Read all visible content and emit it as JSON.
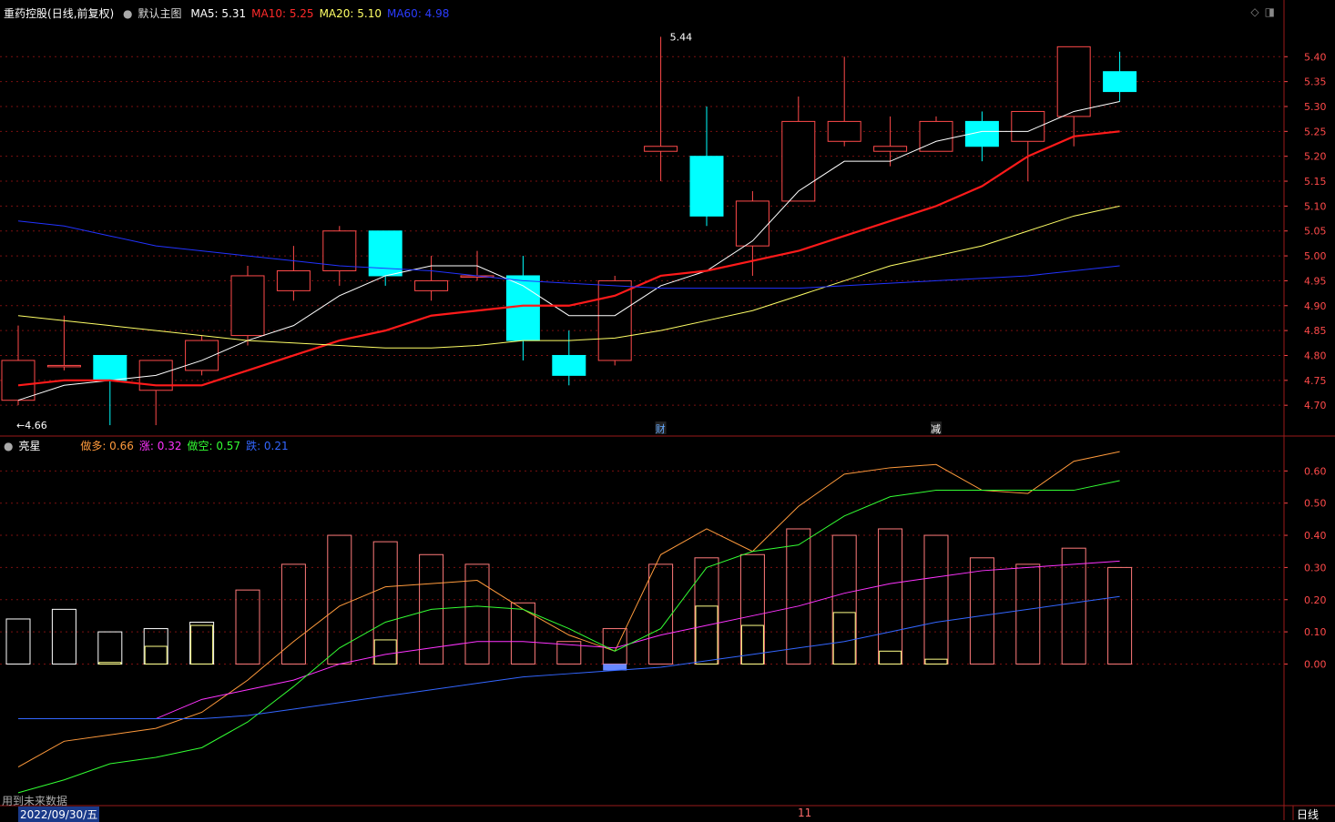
{
  "header": {
    "stock": "重药控股",
    "mode": "(日线,前复权)",
    "template": "默认主图",
    "ma_labels": [
      {
        "label": "MA5:",
        "value": "5.31",
        "color": "#ffffff"
      },
      {
        "label": "MA10:",
        "value": "5.25",
        "color": "#ff2a2a"
      },
      {
        "label": "MA20:",
        "value": "5.10",
        "color": "#ffff66"
      },
      {
        "label": "MA60:",
        "value": "4.98",
        "color": "#2b3cff"
      }
    ]
  },
  "sub_header": {
    "name": "亮星",
    "items": [
      {
        "label": "做多:",
        "value": "0.66",
        "color": "#ff9a3c"
      },
      {
        "label": "涨:",
        "value": "0.32",
        "color": "#ff33ff"
      },
      {
        "label": "做空:",
        "value": "0.57",
        "color": "#33ff33"
      },
      {
        "label": "跌:",
        "value": "0.21",
        "color": "#3366ff"
      }
    ]
  },
  "footer": {
    "note": "用到未来数据",
    "date": "2022/09/30/五",
    "month_marker": "11",
    "period": "日线"
  },
  "colors": {
    "up": "#ff4a4a",
    "down": "#00ffff",
    "ma5": "#ffffff",
    "ma10": "#ff1a1a",
    "ma20": "#ffff66",
    "ma60": "#2233ff",
    "axis": "#ff4a4a",
    "grid": "#7a1010"
  },
  "chart_data": [
    {
      "type": "candlestick",
      "ylim": [
        4.64,
        5.47
      ],
      "y_ticks": [
        4.7,
        4.75,
        4.8,
        4.85,
        4.9,
        4.95,
        5.0,
        5.05,
        5.1,
        5.15,
        5.2,
        5.25,
        5.3,
        5.35,
        5.4
      ],
      "annotations": [
        {
          "text": "5.44",
          "bar": 14,
          "value": 5.44
        },
        {
          "text": "←4.66",
          "bar": 0,
          "value": 4.66
        }
      ],
      "event_markers": [
        {
          "text": "财",
          "bar": 14
        },
        {
          "text": "减",
          "bar": 20
        }
      ],
      "candles": [
        {
          "o": 4.71,
          "h": 4.86,
          "l": 4.7,
          "c": 4.79
        },
        {
          "o": 4.78,
          "h": 4.88,
          "l": 4.77,
          "c": 4.78
        },
        {
          "o": 4.8,
          "h": 4.8,
          "l": 4.66,
          "c": 4.75
        },
        {
          "o": 4.73,
          "h": 4.79,
          "l": 4.66,
          "c": 4.79
        },
        {
          "o": 4.77,
          "h": 4.84,
          "l": 4.76,
          "c": 4.83
        },
        {
          "o": 4.84,
          "h": 4.98,
          "l": 4.82,
          "c": 4.96
        },
        {
          "o": 4.93,
          "h": 5.02,
          "l": 4.91,
          "c": 4.97
        },
        {
          "o": 4.97,
          "h": 5.06,
          "l": 4.94,
          "c": 5.05
        },
        {
          "o": 5.05,
          "h": 5.05,
          "l": 4.94,
          "c": 4.96
        },
        {
          "o": 4.93,
          "h": 5.0,
          "l": 4.91,
          "c": 4.95
        },
        {
          "o": 4.96,
          "h": 5.01,
          "l": 4.95,
          "c": 4.96
        },
        {
          "o": 4.96,
          "h": 5.0,
          "l": 4.79,
          "c": 4.83
        },
        {
          "o": 4.8,
          "h": 4.85,
          "l": 4.74,
          "c": 4.76
        },
        {
          "o": 4.79,
          "h": 4.96,
          "l": 4.78,
          "c": 4.95
        },
        {
          "o": 5.21,
          "h": 5.44,
          "l": 5.15,
          "c": 5.22
        },
        {
          "o": 5.2,
          "h": 5.3,
          "l": 5.06,
          "c": 5.08
        },
        {
          "o": 5.02,
          "h": 5.13,
          "l": 4.96,
          "c": 5.11
        },
        {
          "o": 5.11,
          "h": 5.32,
          "l": 5.11,
          "c": 5.27
        },
        {
          "o": 5.23,
          "h": 5.4,
          "l": 5.22,
          "c": 5.27
        },
        {
          "o": 5.21,
          "h": 5.28,
          "l": 5.18,
          "c": 5.22
        },
        {
          "o": 5.21,
          "h": 5.28,
          "l": 5.21,
          "c": 5.27
        },
        {
          "o": 5.27,
          "h": 5.29,
          "l": 5.19,
          "c": 5.22
        },
        {
          "o": 5.23,
          "h": 5.29,
          "l": 5.15,
          "c": 5.29
        },
        {
          "o": 5.28,
          "h": 5.42,
          "l": 5.22,
          "c": 5.42
        },
        {
          "o": 5.37,
          "h": 5.41,
          "l": 5.31,
          "c": 5.33
        }
      ],
      "series": [
        {
          "name": "MA5",
          "values": [
            4.71,
            4.74,
            4.75,
            4.76,
            4.79,
            4.83,
            4.86,
            4.92,
            4.96,
            4.98,
            4.98,
            4.94,
            4.88,
            4.88,
            4.94,
            4.97,
            5.03,
            5.13,
            5.19,
            5.19,
            5.23,
            5.25,
            5.25,
            5.29,
            5.31
          ]
        },
        {
          "name": "MA10",
          "values": [
            4.74,
            4.75,
            4.75,
            4.74,
            4.74,
            4.77,
            4.8,
            4.83,
            4.85,
            4.88,
            4.89,
            4.9,
            4.9,
            4.92,
            4.96,
            4.97,
            4.99,
            5.01,
            5.04,
            5.07,
            5.1,
            5.14,
            5.2,
            5.24,
            5.25
          ]
        },
        {
          "name": "MA20",
          "values": [
            4.88,
            4.87,
            4.86,
            4.85,
            4.84,
            4.83,
            4.825,
            4.82,
            4.815,
            4.815,
            4.82,
            4.83,
            4.83,
            4.835,
            4.85,
            4.87,
            4.89,
            4.92,
            4.95,
            4.98,
            5.0,
            5.02,
            5.05,
            5.08,
            5.1
          ]
        },
        {
          "name": "MA60",
          "values": [
            5.07,
            5.06,
            5.04,
            5.02,
            5.01,
            5.0,
            4.99,
            4.98,
            4.975,
            4.97,
            4.96,
            4.95,
            4.945,
            4.94,
            4.935,
            4.935,
            4.935,
            4.935,
            4.94,
            4.945,
            4.95,
            4.955,
            4.96,
            4.97,
            4.98
          ]
        }
      ]
    },
    {
      "type": "bar",
      "ylim": [
        -0.44,
        0.7
      ],
      "y_ticks": [
        0.0,
        0.1,
        0.2,
        0.3,
        0.4,
        0.5,
        0.6
      ],
      "bars": [
        0.14,
        0.17,
        0.1,
        0.11,
        0.13,
        0.23,
        0.31,
        0.4,
        0.38,
        0.34,
        0.31,
        0.19,
        0.07,
        0.11,
        0.31,
        0.33,
        0.34,
        0.42,
        0.4,
        0.42,
        0.4,
        0.33,
        0.31,
        0.36,
        0.3
      ],
      "inner_bars": [
        0,
        0,
        0.005,
        0.055,
        0.12,
        0,
        0,
        0,
        0.075,
        0,
        0,
        0,
        0,
        0,
        0,
        0.18,
        0.12,
        0,
        0.16,
        0.04,
        0.015,
        0,
        0,
        0,
        0
      ],
      "negative_bars": [
        0,
        0,
        0,
        0,
        0,
        0,
        0,
        0,
        0,
        0,
        0,
        0,
        0,
        -0.02,
        0,
        0,
        0,
        0,
        0,
        0,
        0,
        0,
        0,
        0,
        0
      ],
      "series": [
        {
          "name": "做多",
          "values": [
            -0.32,
            -0.24,
            -0.22,
            -0.2,
            -0.15,
            -0.05,
            0.07,
            0.18,
            0.24,
            0.25,
            0.26,
            0.17,
            0.09,
            0.04,
            0.34,
            0.42,
            0.35,
            0.49,
            0.59,
            0.61,
            0.62,
            0.54,
            0.53,
            0.63,
            0.66
          ]
        },
        {
          "name": "涨",
          "values": [
            -0.17,
            -0.17,
            -0.17,
            -0.17,
            -0.11,
            -0.08,
            -0.05,
            0.0,
            0.03,
            0.05,
            0.07,
            0.07,
            0.06,
            0.05,
            0.09,
            0.12,
            0.15,
            0.18,
            0.22,
            0.25,
            0.27,
            0.29,
            0.3,
            0.31,
            0.32
          ]
        },
        {
          "name": "做空",
          "values": [
            -0.4,
            -0.36,
            -0.31,
            -0.29,
            -0.26,
            -0.18,
            -0.07,
            0.05,
            0.13,
            0.17,
            0.18,
            0.17,
            0.11,
            0.04,
            0.11,
            0.3,
            0.35,
            0.37,
            0.46,
            0.52,
            0.54,
            0.54,
            0.54,
            0.54,
            0.57
          ]
        },
        {
          "name": "跌",
          "values": [
            -0.17,
            -0.17,
            -0.17,
            -0.17,
            -0.17,
            -0.16,
            -0.14,
            -0.12,
            -0.1,
            -0.08,
            -0.06,
            -0.04,
            -0.03,
            -0.02,
            -0.01,
            0.01,
            0.03,
            0.05,
            0.07,
            0.1,
            0.13,
            0.15,
            0.17,
            0.19,
            0.21
          ]
        }
      ]
    }
  ]
}
